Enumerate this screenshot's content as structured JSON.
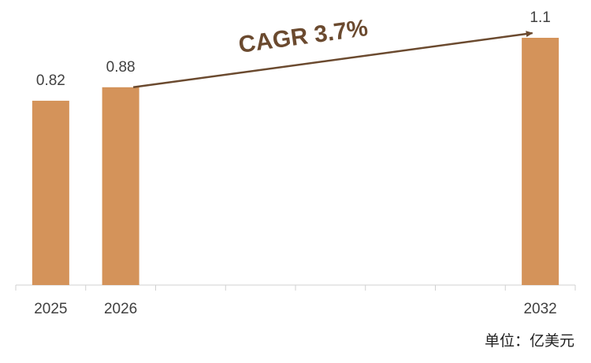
{
  "chart_data": {
    "type": "bar",
    "categories": [
      "2025",
      "2026",
      null,
      null,
      null,
      null,
      null,
      "2032"
    ],
    "values": [
      0.82,
      0.88,
      null,
      null,
      null,
      null,
      null,
      1.1
    ],
    "color": "#d4935a",
    "annotation": "CAGR 3.7%",
    "annotation_color": "#6b4a2f",
    "unit": "单位：亿美元"
  }
}
